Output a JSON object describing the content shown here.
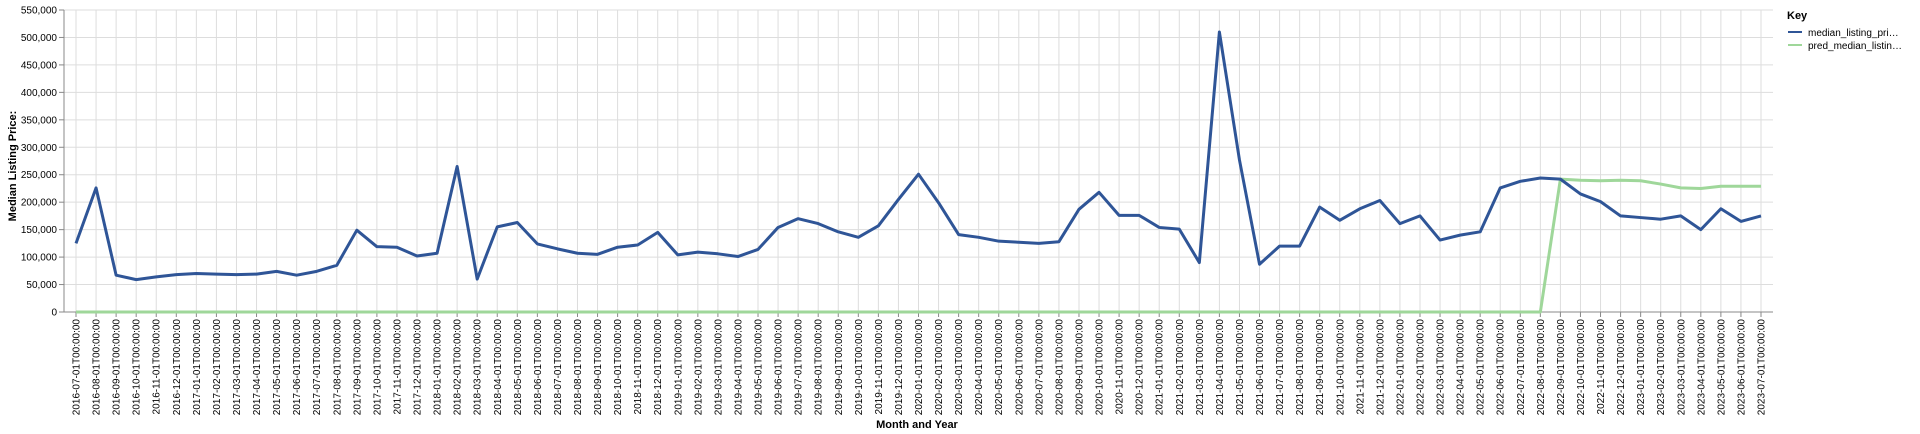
{
  "chart_data": {
    "type": "line",
    "xlabel": "Month and Year",
    "ylabel": "Median Listing Price:",
    "ylim": [
      0,
      550000
    ],
    "y_ticks": [
      "0",
      "50,000",
      "100,000",
      "150,000",
      "200,000",
      "250,000",
      "300,000",
      "350,000",
      "400,000",
      "450,000",
      "500,000",
      "550,000"
    ],
    "grid": true,
    "legend": {
      "title": "Key",
      "placement": "top-right",
      "entries": [
        {
          "label": "median_listing_pri…",
          "color": "#2f5597"
        },
        {
          "label": "pred_median_listin…",
          "color": "#9fd79a"
        }
      ]
    },
    "x": [
      "2016-07-01T00:00:00",
      "2016-08-01T00:00:00",
      "2016-09-01T00:00:00",
      "2016-10-01T00:00:00",
      "2016-11-01T00:00:00",
      "2016-12-01T00:00:00",
      "2017-01-01T00:00:00",
      "2017-02-01T00:00:00",
      "2017-03-01T00:00:00",
      "2017-04-01T00:00:00",
      "2017-05-01T00:00:00",
      "2017-06-01T00:00:00",
      "2017-07-01T00:00:00",
      "2017-08-01T00:00:00",
      "2017-09-01T00:00:00",
      "2017-10-01T00:00:00",
      "2017-11-01T00:00:00",
      "2017-12-01T00:00:00",
      "2018-01-01T00:00:00",
      "2018-02-01T00:00:00",
      "2018-03-01T00:00:00",
      "2018-04-01T00:00:00",
      "2018-05-01T00:00:00",
      "2018-06-01T00:00:00",
      "2018-07-01T00:00:00",
      "2018-08-01T00:00:00",
      "2018-09-01T00:00:00",
      "2018-10-01T00:00:00",
      "2018-11-01T00:00:00",
      "2018-12-01T00:00:00",
      "2019-01-01T00:00:00",
      "2019-02-01T00:00:00",
      "2019-03-01T00:00:00",
      "2019-04-01T00:00:00",
      "2019-05-01T00:00:00",
      "2019-06-01T00:00:00",
      "2019-07-01T00:00:00",
      "2019-08-01T00:00:00",
      "2019-09-01T00:00:00",
      "2019-10-01T00:00:00",
      "2019-11-01T00:00:00",
      "2019-12-01T00:00:00",
      "2020-01-01T00:00:00",
      "2020-02-01T00:00:00",
      "2020-03-01T00:00:00",
      "2020-04-01T00:00:00",
      "2020-05-01T00:00:00",
      "2020-06-01T00:00:00",
      "2020-07-01T00:00:00",
      "2020-08-01T00:00:00",
      "2020-09-01T00:00:00",
      "2020-10-01T00:00:00",
      "2020-11-01T00:00:00",
      "2020-12-01T00:00:00",
      "2021-01-01T00:00:00",
      "2021-02-01T00:00:00",
      "2021-03-01T00:00:00",
      "2021-04-01T00:00:00",
      "2021-05-01T00:00:00",
      "2021-06-01T00:00:00",
      "2021-07-01T00:00:00",
      "2021-08-01T00:00:00",
      "2021-09-01T00:00:00",
      "2021-10-01T00:00:00",
      "2021-11-01T00:00:00",
      "2021-12-01T00:00:00",
      "2022-01-01T00:00:00",
      "2022-02-01T00:00:00",
      "2022-03-01T00:00:00",
      "2022-04-01T00:00:00",
      "2022-05-01T00:00:00",
      "2022-06-01T00:00:00",
      "2022-07-01T00:00:00",
      "2022-08-01T00:00:00",
      "2022-09-01T00:00:00",
      "2022-10-01T00:00:00",
      "2022-11-01T00:00:00",
      "2022-12-01T00:00:00",
      "2023-01-01T00:00:00",
      "2023-02-01T00:00:00",
      "2023-03-01T00:00:00",
      "2023-04-01T00:00:00",
      "2023-05-01T00:00:00",
      "2023-06-01T00:00:00",
      "2023-07-01T00:00:00"
    ],
    "series": [
      {
        "name": "median_listing_pri…",
        "color": "#2f5597",
        "values": [
          125000,
          226000,
          67000,
          59000,
          64000,
          68000,
          70000,
          69000,
          68000,
          69000,
          74000,
          67000,
          74000,
          85000,
          149000,
          119000,
          118000,
          102000,
          107000,
          265000,
          60000,
          155000,
          163000,
          124000,
          115000,
          107000,
          105000,
          118000,
          122000,
          145000,
          104000,
          109000,
          106000,
          101000,
          114000,
          154000,
          170000,
          161000,
          146000,
          136000,
          157000,
          205000,
          251000,
          199000,
          141000,
          136000,
          129000,
          127000,
          125000,
          128000,
          187000,
          218000,
          176000,
          176000,
          154000,
          151000,
          90000,
          510000,
          277000,
          87000,
          120000,
          120000,
          191000,
          167000,
          188000,
          203000,
          161000,
          175000,
          131000,
          140000,
          146000,
          226000,
          238000,
          244000,
          242000,
          215000,
          201000,
          175000,
          172000,
          169000,
          175000,
          150000,
          188000,
          165000,
          175000
        ]
      },
      {
        "name": "pred_median_listin…",
        "color": "#9fd79a",
        "values": [
          0,
          0,
          0,
          0,
          0,
          0,
          0,
          0,
          0,
          0,
          0,
          0,
          0,
          0,
          0,
          0,
          0,
          0,
          0,
          0,
          0,
          0,
          0,
          0,
          0,
          0,
          0,
          0,
          0,
          0,
          0,
          0,
          0,
          0,
          0,
          0,
          0,
          0,
          0,
          0,
          0,
          0,
          0,
          0,
          0,
          0,
          0,
          0,
          0,
          0,
          0,
          0,
          0,
          0,
          0,
          0,
          0,
          0,
          0,
          0,
          0,
          0,
          0,
          0,
          0,
          0,
          0,
          0,
          0,
          0,
          0,
          0,
          0,
          0,
          242000,
          240000,
          239000,
          240000,
          239000,
          233000,
          226000,
          225000,
          229000,
          229000,
          229000
        ]
      }
    ]
  }
}
